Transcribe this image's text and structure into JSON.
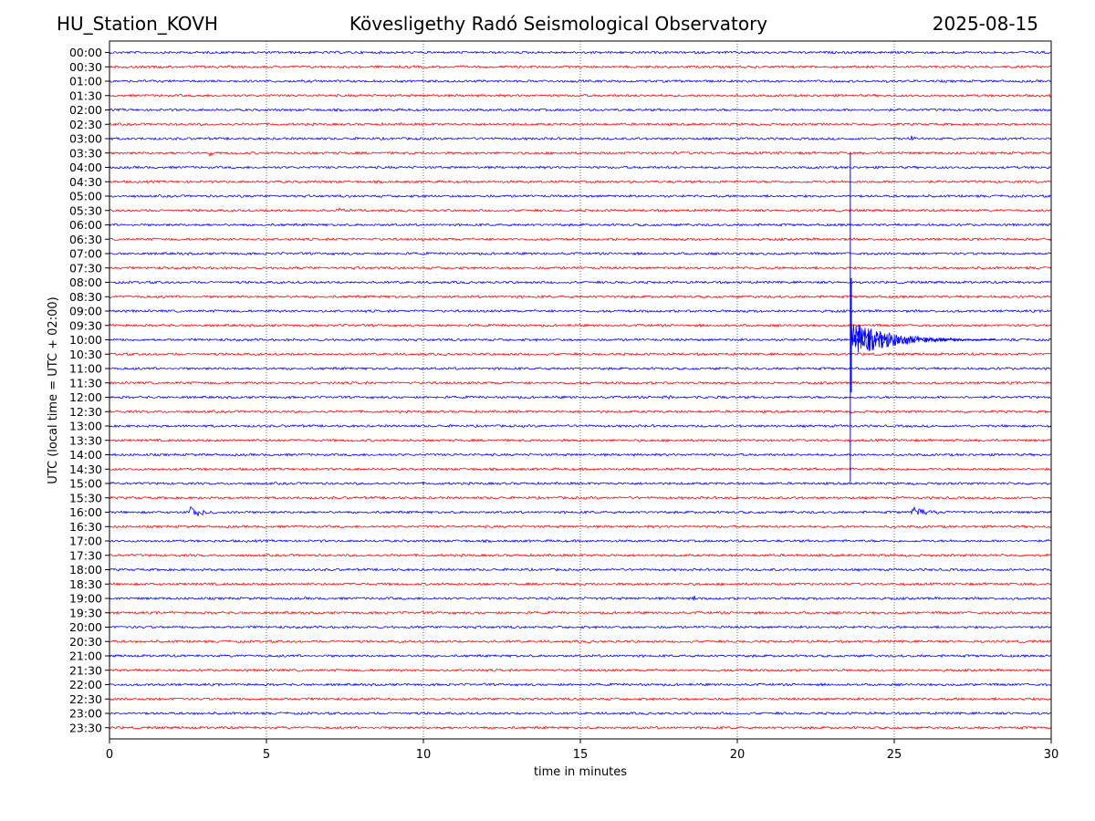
{
  "header": {
    "station": "HU_Station_KOVH",
    "title": "Kövesligethy Radó Seismological Observatory",
    "date": "2025-08-15"
  },
  "chart_data": {
    "type": "line",
    "title": "Kövesligethy Radó Seismological Observatory",
    "xlabel": "time in minutes",
    "ylabel": "UTC (local time = UTC + 02:00)",
    "xlim": [
      0,
      30
    ],
    "xticks": [
      0,
      5,
      10,
      15,
      20,
      25,
      30
    ],
    "grid": "vertical dotted at 5-minute ticks",
    "row_labels": [
      "00:00",
      "00:30",
      "01:00",
      "01:30",
      "02:00",
      "02:30",
      "03:00",
      "03:30",
      "04:00",
      "04:30",
      "05:00",
      "05:30",
      "06:00",
      "06:30",
      "07:00",
      "07:30",
      "08:00",
      "08:30",
      "09:00",
      "09:30",
      "10:00",
      "10:30",
      "11:00",
      "11:30",
      "12:00",
      "12:30",
      "13:00",
      "13:30",
      "14:00",
      "14:30",
      "15:00",
      "15:30",
      "16:00",
      "16:30",
      "17:00",
      "17:30",
      "18:00",
      "18:30",
      "19:00",
      "19:30",
      "20:00",
      "20:30",
      "21:00",
      "21:30",
      "22:00",
      "22:30",
      "23:00",
      "23:30"
    ],
    "colors": {
      "even_rows": "#0000ff",
      "odd_rows": "#ff0000"
    },
    "events": [
      {
        "row": "03:00",
        "start_min": 25.5,
        "end_min": 26.3,
        "amplitude": 0.3
      },
      {
        "row": "03:30",
        "start_min": 3.1,
        "end_min": 3.7,
        "amplitude": 0.35
      },
      {
        "row": "05:00",
        "start_min": 4.2,
        "end_min": 4.4,
        "amplitude": 0.15
      },
      {
        "row": "05:30",
        "start_min": 7.2,
        "end_min": 8.0,
        "amplitude": 0.35
      },
      {
        "row": "12:00",
        "start_min": 17.5,
        "end_min": 19.5,
        "amplitude": 0.18
      },
      {
        "row": "16:00",
        "start_min": 2.5,
        "end_min": 4.2,
        "amplitude": 0.6
      },
      {
        "row": "16:00",
        "start_min": 25.5,
        "end_min": 28.2,
        "amplitude": 0.35
      },
      {
        "row": "19:00",
        "start_min": 18.6,
        "end_min": 18.8,
        "amplitude": 0.4
      },
      {
        "row": "22:00",
        "start_min": 25.7,
        "end_min": 26.0,
        "amplitude": 0.2
      },
      {
        "row": "10:00",
        "start_min": 23.6,
        "end_min": 29.0,
        "amplitude": 3.0,
        "note": "large teleseismic event, spike extends roughly from 03:30 to 15:00 rows"
      }
    ]
  }
}
